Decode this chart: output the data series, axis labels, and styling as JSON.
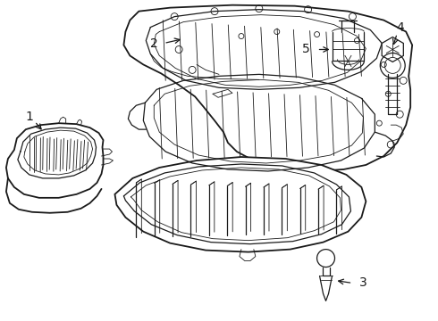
{
  "bg_color": "#ffffff",
  "line_color": "#1a1a1a",
  "lw_main": 1.3,
  "lw_thin": 0.6,
  "lw_med": 0.9,
  "figsize": [
    4.9,
    3.6
  ],
  "dpi": 100
}
